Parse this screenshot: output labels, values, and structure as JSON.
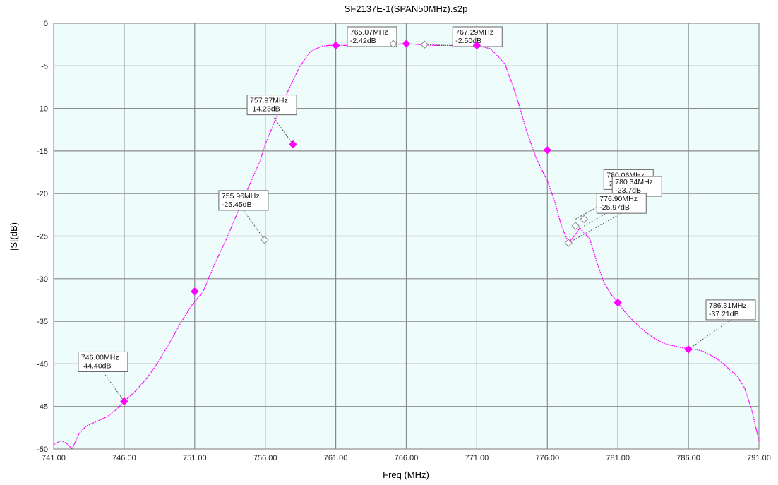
{
  "chart_data": {
    "type": "line",
    "title": "SF2137E-1(SPAN50MHz).s2p",
    "xlabel": "Freq (MHz)",
    "ylabel": "|S|(dB)",
    "xlim": [
      741.0,
      791.0
    ],
    "ylim": [
      -50,
      0
    ],
    "x_ticks": [
      741,
      746,
      751,
      756,
      761,
      766,
      771,
      776,
      781,
      786,
      791
    ],
    "x_tick_labels": [
      "741.00",
      "746.00",
      "751.00",
      "756.00",
      "761.00",
      "766.00",
      "771.00",
      "776.00",
      "781.00",
      "786.00",
      "791.00"
    ],
    "y_ticks": [
      0,
      -5,
      -10,
      -15,
      -20,
      -25,
      -30,
      -35,
      -40,
      -45,
      -50
    ],
    "y_tick_labels": [
      "0",
      "-5",
      "-10",
      "-15",
      "-20",
      "-25",
      "-30",
      "-35",
      "-40",
      "-45",
      "-50"
    ],
    "grid": true,
    "series": [
      {
        "color": "#ff00ff",
        "x": [
          741.0,
          741.5,
          741.9,
          742.3,
          742.8,
          743.3,
          744.0,
          744.8,
          745.5,
          746.0,
          746.8,
          747.6,
          748.4,
          749.2,
          750.0,
          750.8,
          751.6,
          752.4,
          753.2,
          754.0,
          754.8,
          755.6,
          756.0,
          756.8,
          757.6,
          758.4,
          759.2,
          760.0,
          760.5,
          761.0,
          762.0,
          763.0,
          764.0,
          765.0,
          766.0,
          767.0,
          768.0,
          769.0,
          770.0,
          771.0,
          772.0,
          773.0,
          773.8,
          774.5,
          775.2,
          775.9,
          776.0,
          776.5,
          777.0,
          777.5,
          778.0,
          778.3,
          778.6,
          779.0,
          779.5,
          780.0,
          780.5,
          781.0,
          781.5,
          782.0,
          782.5,
          783.0,
          783.5,
          784.0,
          784.5,
          785.0,
          785.5,
          786.0,
          786.5,
          787.0,
          787.5,
          788.0,
          788.5,
          789.0,
          789.5,
          790.0,
          790.5,
          791.0
        ],
        "values": [
          -49.5,
          -49.0,
          -49.3,
          -50.0,
          -48.2,
          -47.3,
          -46.8,
          -46.2,
          -45.3,
          -44.4,
          -43.2,
          -41.7,
          -39.8,
          -37.6,
          -35.2,
          -33.1,
          -31.5,
          -28.3,
          -25.5,
          -22.4,
          -19.3,
          -16.3,
          -14.2,
          -11.0,
          -8.0,
          -5.2,
          -3.3,
          -2.7,
          -2.6,
          -2.6,
          -2.6,
          -2.6,
          -2.6,
          -2.5,
          -2.4,
          -2.5,
          -2.6,
          -2.6,
          -2.6,
          -2.6,
          -3.0,
          -4.8,
          -8.5,
          -12.5,
          -15.8,
          -18.2,
          -18.5,
          -20.8,
          -23.8,
          -25.8,
          -24.8,
          -24.0,
          -24.6,
          -25.3,
          -28.0,
          -30.4,
          -31.8,
          -32.8,
          -33.9,
          -34.8,
          -35.6,
          -36.3,
          -36.9,
          -37.4,
          -37.7,
          -37.9,
          -38.1,
          -38.2,
          -38.3,
          -38.5,
          -38.9,
          -39.4,
          -40.0,
          -40.8,
          -41.5,
          -42.9,
          -45.5,
          -49.0
        ]
      }
    ],
    "markers": [
      {
        "x": 746.0,
        "y": -44.4,
        "style": "filled"
      },
      {
        "x": 751.0,
        "y": -31.5,
        "style": "filled"
      },
      {
        "x": 755.96,
        "y": -25.45,
        "style": "open"
      },
      {
        "x": 757.97,
        "y": -14.23,
        "style": "filled"
      },
      {
        "x": 761.0,
        "y": -2.6,
        "style": "filled"
      },
      {
        "x": 765.07,
        "y": -2.42,
        "style": "open"
      },
      {
        "x": 766.0,
        "y": -2.4,
        "style": "filled"
      },
      {
        "x": 767.29,
        "y": -2.5,
        "style": "open"
      },
      {
        "x": 771.0,
        "y": -2.6,
        "style": "filled"
      },
      {
        "x": 776.0,
        "y": -14.9,
        "style": "filled"
      },
      {
        "x": 777.5,
        "y": -25.8,
        "style": "open"
      },
      {
        "x": 778.0,
        "y": -23.8,
        "style": "open"
      },
      {
        "x": 778.6,
        "y": -23.0,
        "style": "open"
      },
      {
        "x": 781.0,
        "y": -32.8,
        "style": "filled"
      },
      {
        "x": 786.0,
        "y": -38.3,
        "style": "filled"
      }
    ],
    "annotations": [
      {
        "lines": [
          "746.00MHz",
          "-44.40dB"
        ],
        "target_x": 746.0,
        "target_y": -44.4
      },
      {
        "lines": [
          "755.96MHz",
          "-25.45dB"
        ],
        "target_x": 755.96,
        "target_y": -25.45
      },
      {
        "lines": [
          "757.97MHz",
          "-14.23dB"
        ],
        "target_x": 757.97,
        "target_y": -14.23
      },
      {
        "lines": [
          "765.07MHz",
          "-2.42dB"
        ],
        "target_x": 765.07,
        "target_y": -2.42
      },
      {
        "lines": [
          "767.29MHz",
          "-2.50dB"
        ],
        "target_x": 767.29,
        "target_y": -2.5
      },
      {
        "lines": [
          "780.06MHz",
          "-23.07dB"
        ],
        "target_x": 778.0,
        "target_y": -23.0
      },
      {
        "lines": [
          "780.34MHz",
          "-23.7dB"
        ],
        "target_x": 778.6,
        "target_y": -23.8
      },
      {
        "lines": [
          "776.90MHz",
          "-25.97dB"
        ],
        "target_x": 777.5,
        "target_y": -25.8
      },
      {
        "lines": [
          "786.31MHz",
          "-37.21dB"
        ],
        "target_x": 786.0,
        "target_y": -38.3
      }
    ]
  }
}
